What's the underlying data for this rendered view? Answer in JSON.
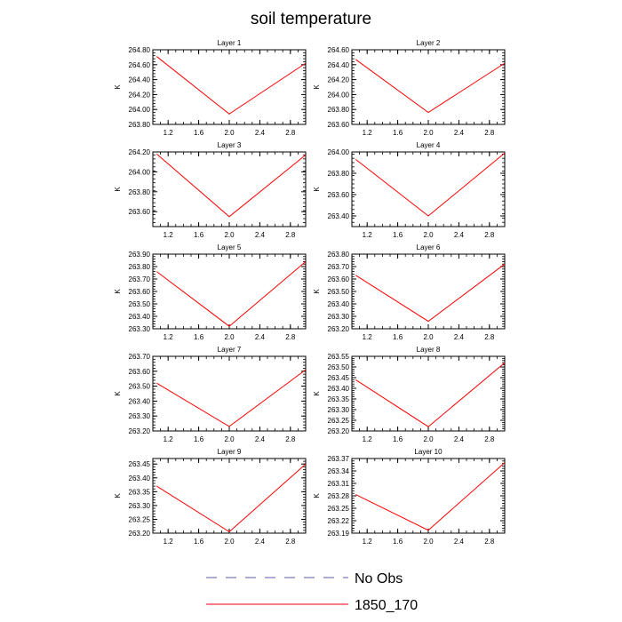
{
  "title": "soil temperature",
  "legend": [
    {
      "label": "No Obs",
      "color": "#5a5aa8",
      "dash": "dashed"
    },
    {
      "label": "1850_170",
      "color": "#ff0000",
      "dash": "solid"
    }
  ],
  "line_color": "#ff0000",
  "chart_data": [
    {
      "type": "line",
      "title": "Layer 1",
      "ylabel": "K",
      "xlim": [
        1,
        3
      ],
      "ylim": [
        263.8,
        264.8
      ],
      "xticks": [
        1.2,
        1.6,
        2.0,
        2.4,
        2.8
      ],
      "xtick_labels": [
        "1.2",
        "1.6",
        "2.0",
        "2.4",
        "2.8"
      ],
      "yticks": [
        263.8,
        264.0,
        264.2,
        264.4,
        264.6,
        264.8
      ],
      "ytick_labels": [
        "263.80",
        "264.00",
        "264.20",
        "264.40",
        "264.60",
        "264.80"
      ],
      "series": [
        {
          "name": "1850_170",
          "x": [
            1.05,
            2.0,
            3.0
          ],
          "y": [
            264.71,
            263.94,
            264.62
          ]
        }
      ]
    },
    {
      "type": "line",
      "title": "Layer 2",
      "ylabel": "K",
      "xlim": [
        1,
        3
      ],
      "ylim": [
        263.6,
        264.6
      ],
      "xticks": [
        1.2,
        1.6,
        2.0,
        2.4,
        2.8
      ],
      "xtick_labels": [
        "1.2",
        "1.6",
        "2.0",
        "2.4",
        "2.8"
      ],
      "yticks": [
        263.6,
        263.8,
        264.0,
        264.2,
        264.4,
        264.6
      ],
      "ytick_labels": [
        "263.60",
        "263.80",
        "264.00",
        "264.20",
        "264.40",
        "264.60"
      ],
      "series": [
        {
          "name": "1850_170",
          "x": [
            1.05,
            2.0,
            3.0
          ],
          "y": [
            264.47,
            263.76,
            264.42
          ]
        }
      ]
    },
    {
      "type": "line",
      "title": "Layer 3",
      "ylabel": "K",
      "xlim": [
        1,
        3
      ],
      "ylim": [
        263.45,
        264.2
      ],
      "xticks": [
        1.2,
        1.6,
        2.0,
        2.4,
        2.8
      ],
      "xtick_labels": [
        "1.2",
        "1.6",
        "2.0",
        "2.4",
        "2.8"
      ],
      "yticks": [
        263.6,
        263.8,
        264.0,
        264.2
      ],
      "ytick_labels": [
        "263.60",
        "263.80",
        "264.00",
        "264.20"
      ],
      "series": [
        {
          "name": "1850_170",
          "x": [
            1.05,
            2.0,
            3.0
          ],
          "y": [
            264.18,
            263.55,
            264.17
          ]
        }
      ]
    },
    {
      "type": "line",
      "title": "Layer 4",
      "ylabel": "K",
      "xlim": [
        1,
        3
      ],
      "ylim": [
        263.3,
        264.0
      ],
      "xticks": [
        1.2,
        1.6,
        2.0,
        2.4,
        2.8
      ],
      "xtick_labels": [
        "1.2",
        "1.6",
        "2.0",
        "2.4",
        "2.8"
      ],
      "yticks": [
        263.4,
        263.6,
        263.8,
        264.0
      ],
      "ytick_labels": [
        "263.40",
        "263.60",
        "263.80",
        "264.00"
      ],
      "series": [
        {
          "name": "1850_170",
          "x": [
            1.05,
            2.0,
            3.0
          ],
          "y": [
            263.93,
            263.4,
            263.99
          ]
        }
      ]
    },
    {
      "type": "line",
      "title": "Layer 5",
      "ylabel": "K",
      "xlim": [
        1,
        3
      ],
      "ylim": [
        263.3,
        263.9
      ],
      "xticks": [
        1.2,
        1.6,
        2.0,
        2.4,
        2.8
      ],
      "xtick_labels": [
        "1.2",
        "1.6",
        "2.0",
        "2.4",
        "2.8"
      ],
      "yticks": [
        263.3,
        263.4,
        263.5,
        263.6,
        263.7,
        263.8,
        263.9
      ],
      "ytick_labels": [
        "263.30",
        "263.40",
        "263.50",
        "263.60",
        "263.70",
        "263.80",
        "263.90"
      ],
      "series": [
        {
          "name": "1850_170",
          "x": [
            1.05,
            2.0,
            3.0
          ],
          "y": [
            263.76,
            263.32,
            263.84
          ]
        }
      ]
    },
    {
      "type": "line",
      "title": "Layer 6",
      "ylabel": "K",
      "xlim": [
        1,
        3
      ],
      "ylim": [
        263.2,
        263.8
      ],
      "xticks": [
        1.2,
        1.6,
        2.0,
        2.4,
        2.8
      ],
      "xtick_labels": [
        "1.2",
        "1.6",
        "2.0",
        "2.4",
        "2.8"
      ],
      "yticks": [
        263.2,
        263.3,
        263.4,
        263.5,
        263.6,
        263.7,
        263.8
      ],
      "ytick_labels": [
        "263.20",
        "263.30",
        "263.40",
        "263.50",
        "263.60",
        "263.70",
        "263.80"
      ],
      "series": [
        {
          "name": "1850_170",
          "x": [
            1.05,
            2.0,
            3.0
          ],
          "y": [
            263.63,
            263.26,
            263.72
          ]
        }
      ]
    },
    {
      "type": "line",
      "title": "Layer 7",
      "ylabel": "K",
      "xlim": [
        1,
        3
      ],
      "ylim": [
        263.2,
        263.7
      ],
      "xticks": [
        1.2,
        1.6,
        2.0,
        2.4,
        2.8
      ],
      "xtick_labels": [
        "1.2",
        "1.6",
        "2.0",
        "2.4",
        "2.8"
      ],
      "yticks": [
        263.2,
        263.3,
        263.4,
        263.5,
        263.6,
        263.7
      ],
      "ytick_labels": [
        "263.20",
        "263.30",
        "263.40",
        "263.50",
        "263.60",
        "263.70"
      ],
      "series": [
        {
          "name": "1850_170",
          "x": [
            1.05,
            2.0,
            3.0
          ],
          "y": [
            263.52,
            263.23,
            263.61
          ]
        }
      ]
    },
    {
      "type": "line",
      "title": "Layer 8",
      "ylabel": "K",
      "xlim": [
        1,
        3
      ],
      "ylim": [
        263.2,
        263.55
      ],
      "xticks": [
        1.2,
        1.6,
        2.0,
        2.4,
        2.8
      ],
      "xtick_labels": [
        "1.2",
        "1.6",
        "2.0",
        "2.4",
        "2.8"
      ],
      "yticks": [
        263.2,
        263.25,
        263.3,
        263.35,
        263.4,
        263.45,
        263.5,
        263.55
      ],
      "ytick_labels": [
        "263.20",
        "263.25",
        "263.30",
        "263.35",
        "263.40",
        "263.45",
        "263.50",
        "263.55"
      ],
      "series": [
        {
          "name": "1850_170",
          "x": [
            1.05,
            2.0,
            3.0
          ],
          "y": [
            263.44,
            263.22,
            263.52
          ]
        }
      ]
    },
    {
      "type": "line",
      "title": "Layer 9",
      "ylabel": "K",
      "xlim": [
        1,
        3
      ],
      "ylim": [
        263.2,
        263.47
      ],
      "xticks": [
        1.2,
        1.6,
        2.0,
        2.4,
        2.8
      ],
      "xtick_labels": [
        "1.2",
        "1.6",
        "2.0",
        "2.4",
        "2.8"
      ],
      "yticks": [
        263.2,
        263.25,
        263.3,
        263.35,
        263.4,
        263.45
      ],
      "ytick_labels": [
        "263.20",
        "263.25",
        "263.30",
        "263.35",
        "263.40",
        "263.45"
      ],
      "series": [
        {
          "name": "1850_170",
          "x": [
            1.05,
            2.0,
            3.0
          ],
          "y": [
            263.37,
            263.205,
            263.45
          ]
        }
      ]
    },
    {
      "type": "line",
      "title": "Layer 10",
      "ylabel": "K",
      "xlim": [
        1,
        3
      ],
      "ylim": [
        263.19,
        263.37
      ],
      "xticks": [
        1.2,
        1.6,
        2.0,
        2.4,
        2.8
      ],
      "xtick_labels": [
        "1.2",
        "1.6",
        "2.0",
        "2.4",
        "2.8"
      ],
      "yticks": [
        263.19,
        263.22,
        263.25,
        263.28,
        263.31,
        263.34,
        263.37
      ],
      "ytick_labels": [
        "263.19",
        "263.22",
        "263.25",
        "263.28",
        "263.31",
        "263.34",
        "263.37"
      ],
      "series": [
        {
          "name": "1850_170",
          "x": [
            1.05,
            2.0,
            3.0
          ],
          "y": [
            263.283,
            263.197,
            263.36
          ]
        }
      ]
    }
  ]
}
